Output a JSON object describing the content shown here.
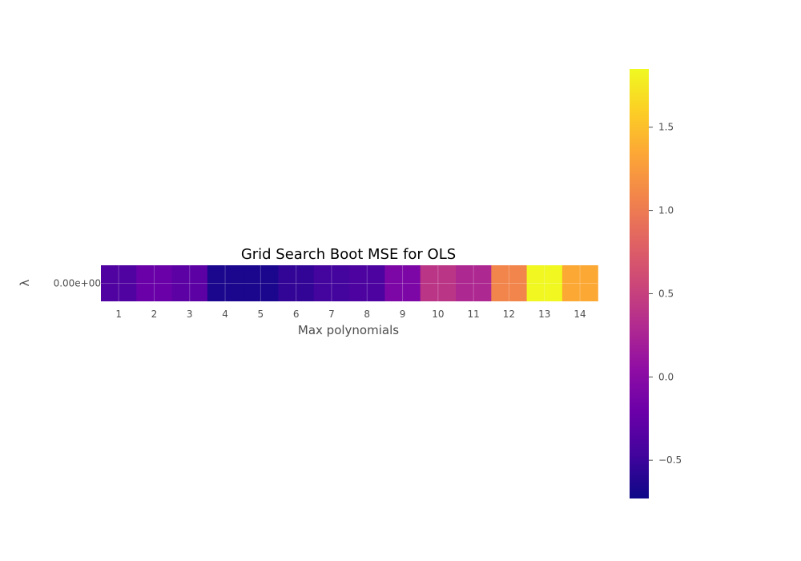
{
  "chart_data": {
    "type": "heatmap",
    "title": "Grid Search Boot MSE for OLS",
    "xlabel": "Max polynomials",
    "ylabel": "λ",
    "x_categories": [
      "1",
      "2",
      "3",
      "4",
      "5",
      "6",
      "7",
      "8",
      "9",
      "10",
      "11",
      "12",
      "13",
      "14"
    ],
    "y_categories": [
      "0.00e+00"
    ],
    "values": [
      [
        -0.38,
        -0.22,
        -0.3,
        -0.66,
        -0.66,
        -0.54,
        -0.45,
        -0.4,
        -0.08,
        0.4,
        0.28,
        1.08,
        1.84,
        1.35
      ]
    ],
    "colormap": "plasma",
    "colorbar": {
      "vmin": -0.73,
      "vmax": 1.85,
      "ticks": [
        -0.5,
        0.0,
        0.5,
        1.0,
        1.5
      ],
      "tick_labels": [
        "−0.5",
        "0.0",
        "0.5",
        "1.0",
        "1.5"
      ]
    },
    "grid": true
  }
}
